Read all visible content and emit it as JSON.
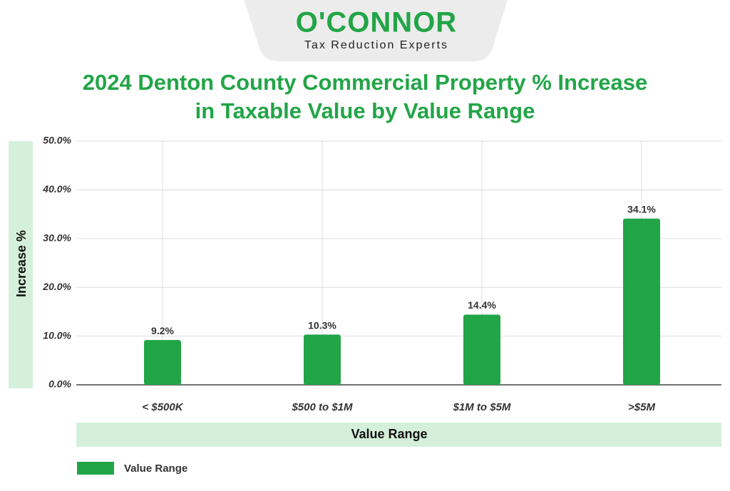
{
  "logo": {
    "name": "O'CONNOR",
    "tagline": "Tax Reduction Experts"
  },
  "chart_data": {
    "type": "bar",
    "title": "2024 Denton County Commercial Property % Increase in Taxable Value by Value Range",
    "x_label": "Value Range",
    "y_label": "Increase %",
    "categories": [
      "< $500K",
      "$500 to $1M",
      "$1M to $5M",
      ">$5M"
    ],
    "series": [
      {
        "name": "Value Range",
        "color": "#22a547",
        "values": [
          9.2,
          10.3,
          14.4,
          34.1
        ],
        "value_labels": [
          "9.2%",
          "10.3%",
          "14.4%",
          "34.1%"
        ]
      }
    ],
    "ylim": [
      0,
      50
    ],
    "yticks": [
      {
        "value": 0,
        "label": "0.0%"
      },
      {
        "value": 10,
        "label": "10.0%"
      },
      {
        "value": 20,
        "label": "20.0%"
      },
      {
        "value": 30,
        "label": "30.0%"
      },
      {
        "value": 40,
        "label": "40.0%"
      },
      {
        "value": 50,
        "label": "50.0%"
      }
    ],
    "grid": true,
    "legend": "bottom-left"
  }
}
